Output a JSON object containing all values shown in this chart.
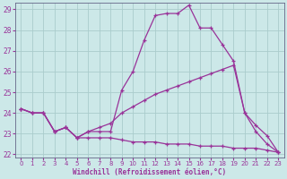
{
  "xlabel": "Windchill (Refroidissement éolien,°C)",
  "x": [
    0,
    1,
    2,
    3,
    4,
    5,
    6,
    7,
    8,
    9,
    10,
    11,
    12,
    13,
    14,
    15,
    16,
    17,
    18,
    19,
    20,
    21,
    22,
    23
  ],
  "line_upper": [
    24.2,
    24.0,
    24.0,
    23.1,
    23.3,
    22.8,
    23.1,
    23.1,
    23.1,
    25.1,
    26.0,
    27.5,
    28.7,
    28.8,
    28.8,
    29.2,
    28.1,
    28.1,
    27.3,
    26.5,
    24.0,
    23.1,
    22.5,
    22.1
  ],
  "line_middle": [
    24.2,
    24.0,
    24.0,
    23.1,
    23.3,
    22.8,
    23.1,
    23.3,
    23.5,
    24.0,
    24.3,
    24.6,
    24.9,
    25.1,
    25.3,
    25.5,
    25.7,
    25.9,
    26.1,
    26.3,
    24.0,
    23.4,
    22.9,
    22.1
  ],
  "line_lower": [
    24.2,
    24.0,
    24.0,
    23.1,
    23.3,
    22.8,
    22.8,
    22.8,
    22.8,
    22.7,
    22.6,
    22.6,
    22.6,
    22.5,
    22.5,
    22.5,
    22.4,
    22.4,
    22.4,
    22.3,
    22.3,
    22.3,
    22.2,
    22.1
  ],
  "line_color": "#993399",
  "bg_color": "#cce8e8",
  "grid_color": "#aacccc",
  "ylim_min": 22,
  "ylim_max": 29,
  "yticks": [
    22,
    23,
    24,
    25,
    26,
    27,
    28,
    29
  ],
  "xticks": [
    0,
    1,
    2,
    3,
    4,
    5,
    6,
    7,
    8,
    9,
    10,
    11,
    12,
    13,
    14,
    15,
    16,
    17,
    18,
    19,
    20,
    21,
    22,
    23
  ],
  "linewidth": 0.9,
  "markersize": 3.0
}
